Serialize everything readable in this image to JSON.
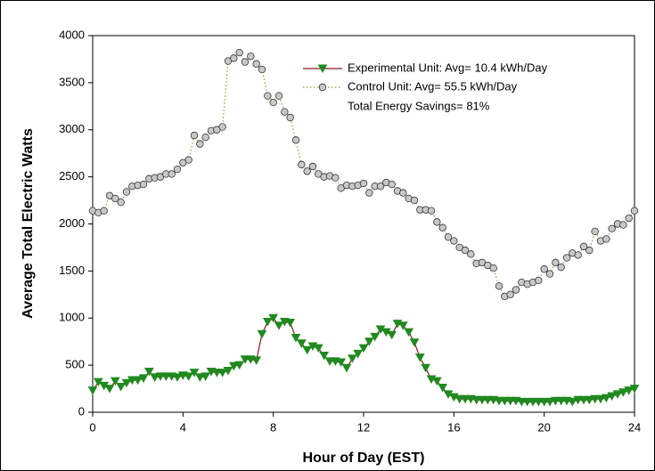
{
  "chart_data": {
    "type": "line",
    "xlabel": "Hour of Day (EST)",
    "ylabel": "Average Total Electric Watts",
    "annotation": "Total Energy Savings= 81%",
    "x": [
      0,
      0.25,
      0.5,
      0.75,
      1,
      1.25,
      1.5,
      1.75,
      2,
      2.25,
      2.5,
      2.75,
      3,
      3.25,
      3.5,
      3.75,
      4,
      4.25,
      4.5,
      4.75,
      5,
      5.25,
      5.5,
      5.75,
      6,
      6.25,
      6.5,
      6.75,
      7,
      7.25,
      7.5,
      7.75,
      8,
      8.25,
      8.5,
      8.75,
      9,
      9.25,
      9.5,
      9.75,
      10,
      10.25,
      10.5,
      10.75,
      11,
      11.25,
      11.5,
      11.75,
      12,
      12.25,
      12.5,
      12.75,
      13,
      13.25,
      13.5,
      13.75,
      14,
      14.25,
      14.5,
      14.75,
      15,
      15.25,
      15.5,
      15.75,
      16,
      16.25,
      16.5,
      16.75,
      17,
      17.25,
      17.5,
      17.75,
      18,
      18.25,
      18.5,
      18.75,
      19,
      19.25,
      19.5,
      19.75,
      20,
      20.25,
      20.5,
      20.75,
      21,
      21.25,
      21.5,
      21.75,
      22,
      22.25,
      22.5,
      22.75,
      23,
      23.25,
      23.5,
      23.75,
      24
    ],
    "series": [
      {
        "name": "Experimental Unit: Avg= 10.4 kWh/Day",
        "color": "#8b1a1a",
        "marker_color": "#1f8a1f",
        "marker": "triangle",
        "values": [
          230,
          320,
          280,
          250,
          330,
          270,
          310,
          340,
          340,
          360,
          430,
          370,
          380,
          380,
          380,
          370,
          390,
          380,
          420,
          370,
          380,
          430,
          420,
          420,
          440,
          490,
          500,
          560,
          560,
          550,
          830,
          960,
          1000,
          920,
          960,
          950,
          790,
          730,
          660,
          700,
          680,
          600,
          540,
          540,
          530,
          470,
          570,
          620,
          680,
          750,
          800,
          880,
          850,
          820,
          940,
          920,
          850,
          740,
          580,
          470,
          350,
          330,
          260,
          190,
          160,
          140,
          140,
          140,
          130,
          130,
          130,
          130,
          120,
          120,
          120,
          120,
          110,
          110,
          110,
          110,
          110,
          110,
          120,
          120,
          120,
          110,
          130,
          130,
          130,
          140,
          140,
          150,
          170,
          190,
          210,
          230,
          250
        ]
      },
      {
        "name": "Control Unit: Avg= 55.5 kWh/Day",
        "color": "#9a9a2a",
        "marker_color": "#c8c8c8",
        "marker": "circle",
        "values": [
          2140,
          2120,
          2140,
          2300,
          2270,
          2230,
          2340,
          2400,
          2410,
          2420,
          2480,
          2490,
          2500,
          2530,
          2530,
          2580,
          2650,
          2680,
          2940,
          2850,
          2920,
          2990,
          3000,
          3030,
          3730,
          3760,
          3820,
          3720,
          3780,
          3700,
          3640,
          3360,
          3290,
          3360,
          3190,
          3130,
          2890,
          2630,
          2560,
          2610,
          2530,
          2500,
          2510,
          2490,
          2380,
          2410,
          2400,
          2410,
          2430,
          2330,
          2400,
          2400,
          2440,
          2420,
          2350,
          2330,
          2270,
          2250,
          2150,
          2150,
          2140,
          2020,
          1960,
          1860,
          1820,
          1750,
          1720,
          1680,
          1580,
          1590,
          1560,
          1530,
          1340,
          1230,
          1250,
          1300,
          1380,
          1360,
          1380,
          1400,
          1520,
          1470,
          1590,
          1540,
          1640,
          1690,
          1670,
          1760,
          1720,
          1920,
          1820,
          1840,
          1950,
          2000,
          1990,
          2060,
          2140
        ]
      }
    ],
    "xlim": [
      0,
      24
    ],
    "xticks": [
      0,
      4,
      8,
      12,
      16,
      20,
      24
    ],
    "ylim": [
      0,
      4000
    ],
    "yticks": [
      0,
      500,
      1000,
      1500,
      2000,
      2500,
      3000,
      3500,
      4000
    ],
    "grid": false
  }
}
